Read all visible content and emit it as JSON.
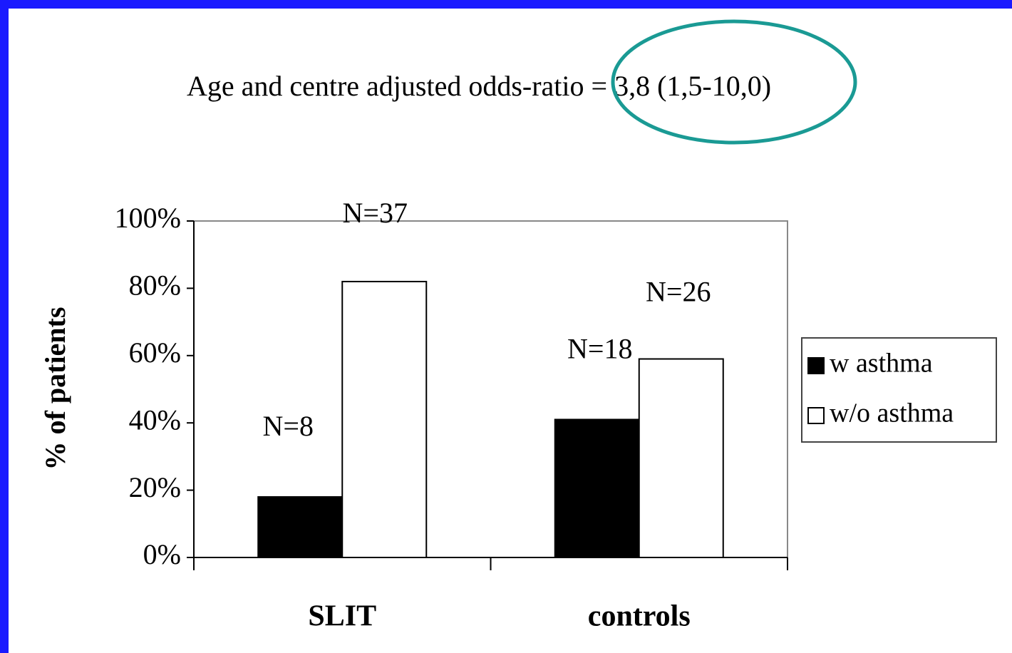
{
  "chart_data": {
    "type": "bar",
    "title": "Age and centre adjusted odds-ratio = 3,8 (1,5-10,0)",
    "y_label": "% of patients",
    "categories": [
      "SLIT",
      "controls"
    ],
    "series": [
      {
        "name": "w asthma",
        "color": "#000000",
        "values": [
          18,
          41
        ],
        "annotations": [
          "N=8",
          "N=18"
        ]
      },
      {
        "name": "w/o asthma",
        "color": "#ffffff",
        "values": [
          82,
          59
        ],
        "annotations": [
          "N=37",
          "N=26"
        ]
      }
    ],
    "ylim": [
      0,
      100
    ],
    "yticks": [
      {
        "value": 0,
        "label": "0%"
      },
      {
        "value": 20,
        "label": "20%"
      },
      {
        "value": 40,
        "label": "40%"
      },
      {
        "value": 60,
        "label": "60%"
      },
      {
        "value": 80,
        "label": "80%"
      },
      {
        "value": 100,
        "label": "100%"
      }
    ],
    "legend": "right"
  }
}
